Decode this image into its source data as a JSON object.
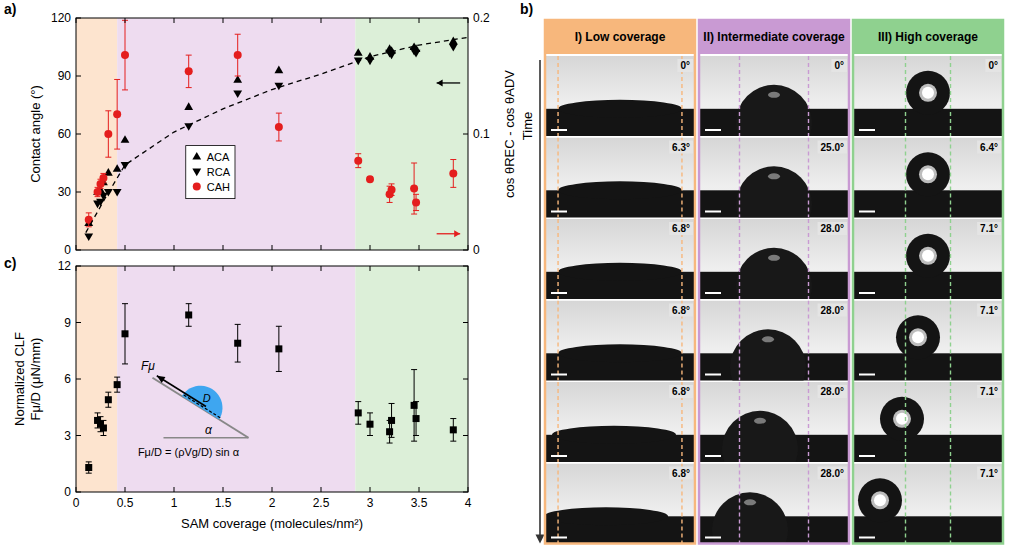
{
  "chart_data": [
    {
      "type": "scatter",
      "title": "a)",
      "ylabel": "Contact angle (°)",
      "y2label": "cos θREC - cos θADV",
      "xlim": [
        0,
        4
      ],
      "xticks": [
        0,
        0.5,
        1,
        1.5,
        2,
        2.5,
        3,
        3.5,
        4
      ],
      "ylim": [
        0,
        120
      ],
      "yticks": [
        0,
        30,
        60,
        90,
        120
      ],
      "y2lim": [
        0,
        0.2
      ],
      "y2ticks": [
        0,
        0.1,
        0.2
      ],
      "tick_labels": "y",
      "legend": "center",
      "bands": [
        {
          "x": [
            0,
            0.42
          ],
          "color": "#fde4cf"
        },
        {
          "x": [
            0.42,
            2.85
          ],
          "color": "#eedcf0"
        },
        {
          "x": [
            2.85,
            4
          ],
          "color": "#dcefd8"
        }
      ],
      "series": [
        {
          "name": "ACA",
          "color": "#000000",
          "marker": "triangle-up",
          "x": [
            0.13,
            0.22,
            0.25,
            0.28,
            0.33,
            0.42,
            0.5,
            1.15,
            1.65,
            2.07,
            2.88,
            3.0,
            3.2,
            3.22,
            3.45,
            3.47,
            3.85
          ],
          "values": [
            14,
            30,
            31,
            35,
            40,
            42,
            57,
            74,
            88,
            93,
            102,
            100,
            104,
            103,
            105,
            104,
            108
          ]
        },
        {
          "name": "RCA",
          "color": "#000000",
          "marker": "triangle-down",
          "x": [
            0.13,
            0.22,
            0.25,
            0.28,
            0.33,
            0.42,
            0.5,
            1.15,
            1.65,
            2.07,
            2.88,
            3.0,
            3.2,
            3.22,
            3.45,
            3.47,
            3.85
          ],
          "values": [
            7,
            24,
            25,
            28,
            30,
            30,
            44,
            64,
            81,
            85,
            98,
            98,
            102,
            101,
            103,
            102,
            105
          ]
        },
        {
          "name": "CAH",
          "color": "#e41e1e",
          "marker": "circle",
          "axis": "y2",
          "x": [
            0.13,
            0.22,
            0.25,
            0.28,
            0.33,
            0.42,
            0.5,
            1.15,
            1.65,
            2.07,
            2.88,
            3.0,
            3.2,
            3.22,
            3.45,
            3.47,
            3.85
          ],
          "values": [
            0.026,
            0.05,
            0.057,
            0.062,
            0.1,
            0.117,
            0.168,
            0.154,
            0.168,
            0.106,
            0.077,
            0.061,
            0.048,
            0.052,
            0.053,
            0.041,
            0.066
          ],
          "errors": [
            0.006,
            0.004,
            0.004,
            0.004,
            0.02,
            0.03,
            0.03,
            0.014,
            0.018,
            0.012,
            0.006,
            0.002,
            0.007,
            0.005,
            0.022,
            0.007,
            0.012
          ]
        },
        {
          "type": "line",
          "color": "#000000",
          "line_style": "dashed",
          "x": [
            0.1,
            0.3,
            0.5,
            1,
            1.5,
            2,
            2.5,
            3,
            3.5,
            4
          ],
          "values": [
            9,
            27,
            44,
            61,
            73,
            83,
            91,
            100,
            106,
            110
          ]
        }
      ]
    },
    {
      "type": "scatter",
      "title": "c)",
      "xlabel": "SAM coverage (molecules/nm²)",
      "ylabel": [
        "Normalized CLF",
        "Fμ/D (μN/mm)"
      ],
      "xlim": [
        0,
        4
      ],
      "xticks": [
        0,
        0.5,
        1,
        1.5,
        2,
        2.5,
        3,
        3.5,
        4
      ],
      "ylim": [
        0,
        12
      ],
      "yticks": [
        0,
        3,
        6,
        9,
        12
      ],
      "tick_labels": true,
      "bands": [
        {
          "x": [
            0,
            0.42
          ],
          "color": "#fde4cf"
        },
        {
          "x": [
            0.42,
            2.85
          ],
          "color": "#eedcf0"
        },
        {
          "x": [
            2.85,
            4
          ],
          "color": "#dcefd8"
        }
      ],
      "annotations": [
        "Fμ",
        "D",
        "α",
        "Fμ/D = (ρVg/D) sin α"
      ],
      "series": [
        {
          "color": "#000000",
          "marker": "square",
          "x": [
            0.13,
            0.22,
            0.25,
            0.28,
            0.33,
            0.42,
            0.5,
            1.15,
            1.65,
            2.07,
            2.88,
            3.0,
            3.2,
            3.22,
            3.45,
            3.47,
            3.85
          ],
          "values": [
            1.3,
            3.8,
            3.6,
            3.4,
            4.9,
            5.7,
            8.4,
            9.4,
            7.9,
            7.6,
            4.2,
            3.6,
            3.2,
            3.8,
            4.6,
            3.9,
            3.3
          ],
          "errors": [
            0.3,
            0.4,
            0.4,
            0.4,
            0.4,
            0.4,
            1.6,
            0.6,
            1.0,
            1.2,
            0.6,
            0.6,
            0.6,
            0.9,
            1.9,
            0.9,
            0.6
          ]
        }
      ]
    }
  ],
  "image_grid": {
    "title": "b)",
    "time_label": "Time",
    "columns": [
      {
        "title": "I) Low coverage",
        "color": "#f7b77c",
        "angles": [
          "0°",
          "6.3°",
          "6.8°",
          "6.8°",
          "6.8°",
          "6.8°"
        ]
      },
      {
        "title": "II) Intermediate coverage",
        "color": "#c99ad3",
        "angles": [
          "0°",
          "25.0°",
          "28.0°",
          "28.0°",
          "28.0°",
          "28.0°"
        ]
      },
      {
        "title": "III) High coverage",
        "color": "#8fd18f",
        "angles": [
          "0°",
          "6.4°",
          "7.1°",
          "7.1°",
          "7.1°",
          "7.1°"
        ]
      }
    ]
  }
}
